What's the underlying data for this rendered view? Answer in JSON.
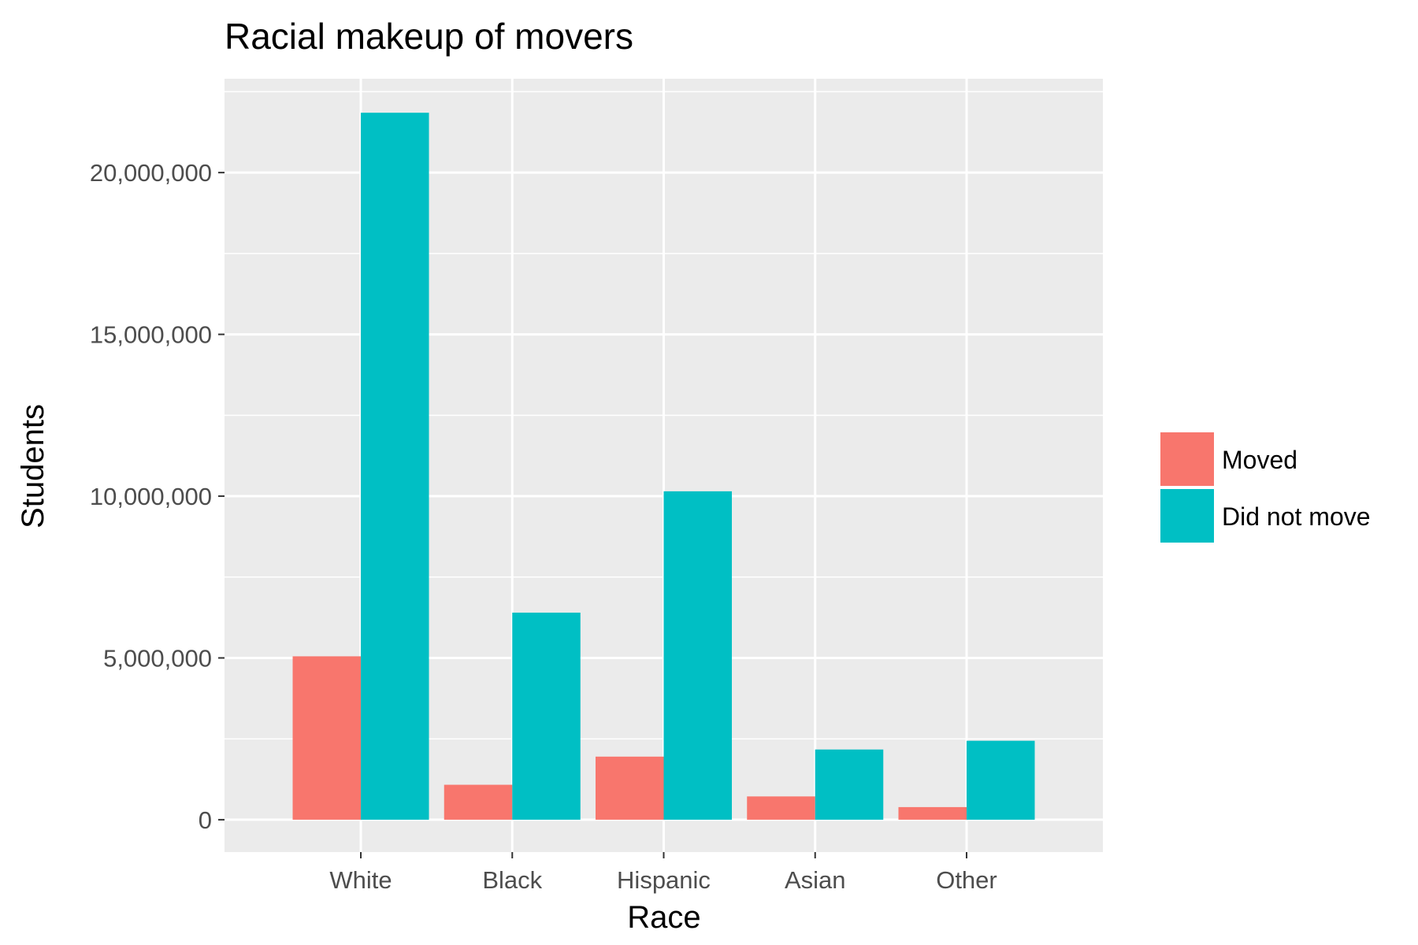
{
  "chart_data": {
    "type": "bar",
    "title": "Racial makeup of movers",
    "xlabel": "Race",
    "ylabel": "Students",
    "categories": [
      "White",
      "Black",
      "Hispanic",
      "Asian",
      "Other"
    ],
    "series": [
      {
        "name": "Moved",
        "color": "#F8766D",
        "values": [
          5050000,
          1080000,
          1950000,
          720000,
          390000
        ]
      },
      {
        "name": "Did not move",
        "color": "#00BFC4",
        "values": [
          21850000,
          6400000,
          10150000,
          2170000,
          2440000
        ]
      }
    ],
    "yticks": [
      0,
      5000000,
      10000000,
      15000000,
      20000000
    ],
    "ytick_labels": [
      "0",
      "5,000,000",
      "10,000,000",
      "15,000,000",
      "20,000,000"
    ],
    "ylim": [
      -1000000,
      22900000
    ],
    "grid": true,
    "legend_position": "right",
    "panel_background": "#EBEBEB",
    "grid_color": "#FFFFFF"
  }
}
